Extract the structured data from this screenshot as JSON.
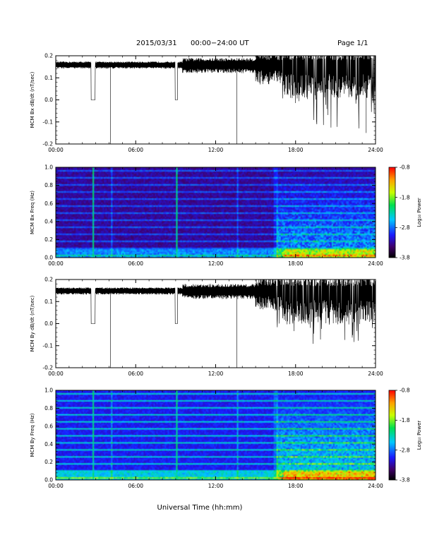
{
  "header": {
    "date": "2015/03/31",
    "range": "00:00−24:00 UT",
    "page": "Page 1/1"
  },
  "xlabel": "Universal Time (hh:mm)",
  "colorbar": {
    "label": "Log₁₀ Power",
    "ticks": [
      "-0.8",
      "-1.8",
      "-2.8",
      "-3.8"
    ]
  },
  "chart_data": [
    {
      "type": "line",
      "ylabel": "MCM Bx dB/dt (nT/sec)",
      "x_ticks": [
        "00:00",
        "06:00",
        "12:00",
        "18:00",
        "24:00"
      ],
      "y_ticks": [
        "0.2",
        "0.1",
        "0.0",
        "-0.1",
        "-0.2"
      ],
      "xlim_hours": [
        0,
        24
      ],
      "ylim": [
        -0.2,
        0.2
      ],
      "baseline": 0.16,
      "gaps_hours": [
        [
          2.65,
          2.95
        ],
        [
          8.95,
          9.15
        ]
      ],
      "spikes": [
        {
          "hour": 4.1,
          "value": -0.2
        },
        {
          "hour": 13.6,
          "value": -0.2
        },
        {
          "hour": 23.3,
          "value": -0.15
        }
      ]
    },
    {
      "type": "heatmap",
      "ylabel": "MCM Bx Freq (Hz)",
      "x_ticks": [
        "00:00",
        "06:00",
        "12:00",
        "18:00",
        "24:00"
      ],
      "y_ticks": [
        "1.0",
        "0.8",
        "0.6",
        "0.4",
        "0.2",
        "0.0"
      ],
      "xlim_hours": [
        0,
        24
      ],
      "ylim": [
        0,
        1
      ],
      "colorscale_range": [
        -3.8,
        -0.8
      ]
    },
    {
      "type": "line",
      "ylabel": "MCM By dB/dt (nT/sec)",
      "x_ticks": [
        "00:00",
        "06:00",
        "12:00",
        "18:00",
        "24:00"
      ],
      "y_ticks": [
        "0.2",
        "0.1",
        "0.0",
        "-0.1",
        "-0.2"
      ],
      "xlim_hours": [
        0,
        24
      ],
      "ylim": [
        -0.2,
        0.2
      ],
      "baseline": 0.15,
      "gaps_hours": [
        [
          2.65,
          2.95
        ],
        [
          8.95,
          9.15
        ]
      ],
      "spikes": [
        {
          "hour": 4.1,
          "value": -0.2
        },
        {
          "hour": 13.6,
          "value": -0.2
        }
      ]
    },
    {
      "type": "heatmap",
      "ylabel": "MCM By Freq (Hz)",
      "x_ticks": [
        "00:00",
        "06:00",
        "12:00",
        "18:00",
        "24:00"
      ],
      "y_ticks": [
        "1.0",
        "0.8",
        "0.6",
        "0.4",
        "0.2",
        "0.0"
      ],
      "xlim_hours": [
        0,
        24
      ],
      "ylim": [
        0,
        1
      ],
      "colorscale_range": [
        -3.8,
        -0.8
      ]
    }
  ]
}
